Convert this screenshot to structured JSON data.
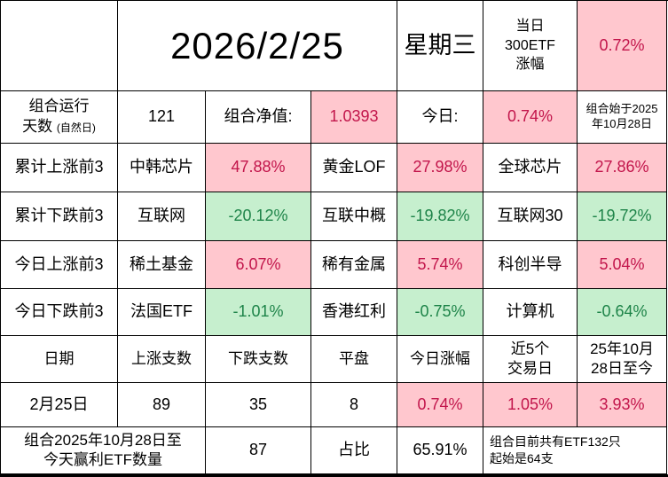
{
  "colors": {
    "up_bg": "#ffc7ce",
    "up_text": "#c2154b",
    "down_bg": "#c6efce",
    "down_text": "#1e8449",
    "grid_border": "#000000"
  },
  "title": {
    "date": "2026/2/25",
    "weekday": "星期三",
    "etf300_label": "当日\n300ETF\n涨幅",
    "etf300_value": "0.72%"
  },
  "summary": {
    "run_days_line1": "组合运行",
    "run_days_line2": "天数 ",
    "run_days_small": "(自然日)",
    "run_days_value": "121",
    "nav_label": "组合净值:",
    "nav_value": "1.0393",
    "today_label": "今日:",
    "today_value": "0.74%",
    "start_note": "组合始于2025\n年10月28日"
  },
  "rankings": [
    {
      "label": "累计上涨前3",
      "items": [
        {
          "name": "中韩芯片",
          "value": "47.88%"
        },
        {
          "name": "黄金LOF",
          "value": "27.98%"
        },
        {
          "name": "全球芯片",
          "value": "27.86%"
        }
      ]
    },
    {
      "label": "累计下跌前3",
      "items": [
        {
          "name": "互联网",
          "value": "-20.12%"
        },
        {
          "name": "互联中概",
          "value": "-19.82%"
        },
        {
          "name": "互联网30",
          "value": "-19.72%"
        }
      ]
    },
    {
      "label": "今日上涨前3",
      "items": [
        {
          "name": "稀土基金",
          "value": "6.07%"
        },
        {
          "name": "稀有金属",
          "value": "5.74%"
        },
        {
          "name": "科创半导",
          "value": "5.04%"
        }
      ]
    },
    {
      "label": "今日下跌前3",
      "items": [
        {
          "name": "法国ETF",
          "value": "-1.01%"
        },
        {
          "name": "香港红利",
          "value": "-0.75%"
        },
        {
          "name": "计算机",
          "value": "-0.64%"
        }
      ]
    }
  ],
  "stats": {
    "headers": {
      "date": "日期",
      "up_count": "上涨支数",
      "down_count": "下跌支数",
      "flat": "平盘",
      "today_change": "今日涨幅",
      "five_day": "近5个\n交易日",
      "since_start": "25年10月\n28日至今"
    },
    "row": {
      "date": "2月25日",
      "up_count": "89",
      "down_count": "35",
      "flat": "8",
      "today_change": "0.74%",
      "five_day": "1.05%",
      "since_start": "3.93%"
    }
  },
  "footer": {
    "win_label": "组合2025年10月28日至\n今天赢利ETF数量",
    "win_value": "87",
    "ratio_label": "占比",
    "ratio_value": "65.91%",
    "note": "组合目前共有ETF132只\n起始是64支"
  }
}
